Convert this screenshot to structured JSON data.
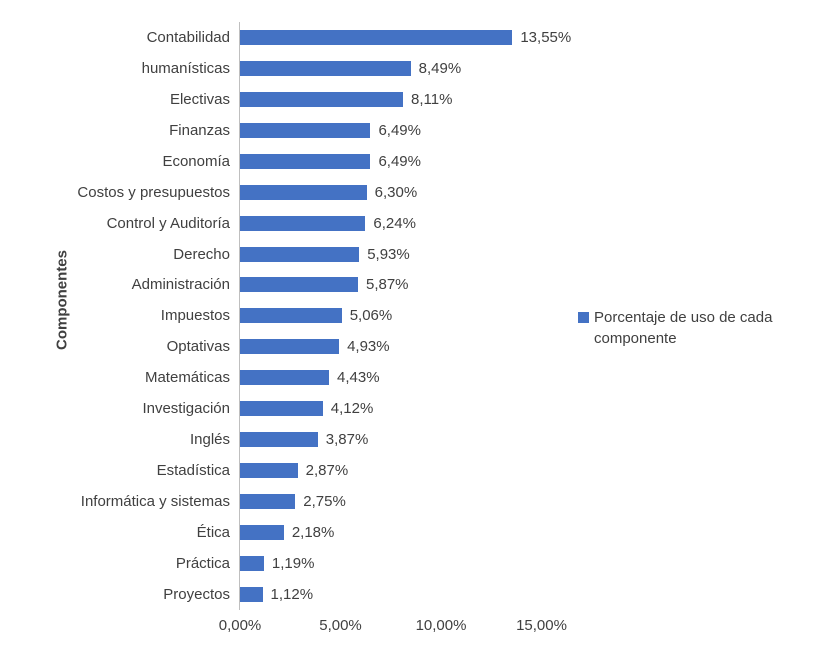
{
  "chart_data": {
    "type": "bar",
    "orientation": "horizontal",
    "title": "",
    "xlabel": "",
    "ylabel": "Componentes",
    "categories": [
      "Contabilidad",
      "humanísticas",
      "Electivas",
      "Finanzas",
      "Economía",
      "Costos y presupuestos",
      "Control y Auditoría",
      "Derecho",
      "Administración",
      "Impuestos",
      "Optativas",
      "Matemáticas",
      "Investigación",
      "Inglés",
      "Estadística",
      "Informática y sistemas",
      "Ética",
      "Práctica",
      "Proyectos"
    ],
    "values": [
      13.55,
      8.49,
      8.11,
      6.49,
      6.49,
      6.3,
      6.24,
      5.93,
      5.87,
      5.06,
      4.93,
      4.43,
      4.12,
      3.87,
      2.87,
      2.75,
      2.18,
      1.19,
      1.12
    ],
    "value_labels": [
      "13,55%",
      "8,49%",
      "8,11%",
      "6,49%",
      "6,49%",
      "6,30%",
      "6,24%",
      "5,93%",
      "5,87%",
      "5,06%",
      "4,93%",
      "4,43%",
      "4,12%",
      "3,87%",
      "2,87%",
      "2,75%",
      "2,18%",
      "1,19%",
      "1,12%"
    ],
    "x_ticks": [
      {
        "value": 0,
        "label": "0,00%"
      },
      {
        "value": 5,
        "label": "5,00%"
      },
      {
        "value": 10,
        "label": "10,00%"
      },
      {
        "value": 15,
        "label": "15,00%"
      }
    ],
    "xlim": [
      0,
      15
    ],
    "grid": false,
    "legend_position": "right",
    "legend": [
      {
        "label": "Porcentaje de uso de cada componente",
        "color": "#4472C4"
      }
    ],
    "bar_color": "#4472C4",
    "text_color": "#404040",
    "axis_line_color": "#BFBFBF"
  }
}
